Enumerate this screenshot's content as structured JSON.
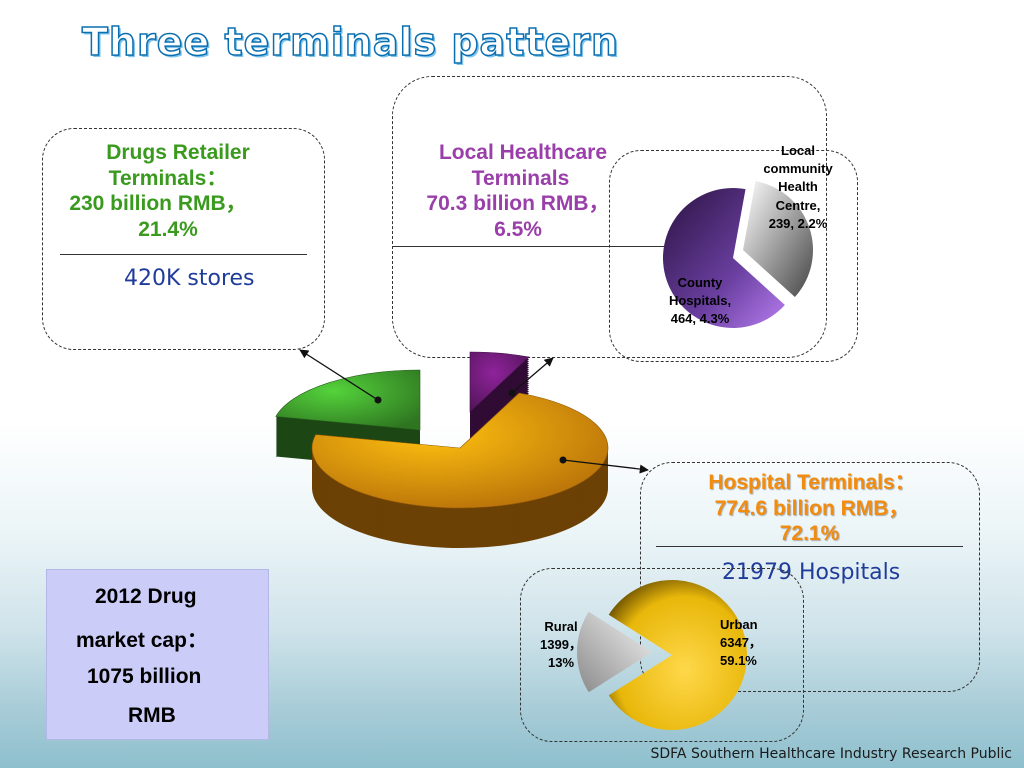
{
  "slide": {
    "title": "Three terminals pattern",
    "footer": "SDFA Southern Healthcare Industry Research Public"
  },
  "retail_box": {
    "lines": [
      "Drugs Retailer",
      "Terminals：",
      "230 billion RMB，",
      "21.4%"
    ],
    "stores": "420K stores"
  },
  "local_box": {
    "lines": [
      "Local Healthcare",
      "Terminals",
      "70.3 billion RMB，",
      "6.5%"
    ]
  },
  "hospital_box": {
    "lines": [
      "Hospital Terminals：",
      "774.6 billion RMB，",
      "72.1%"
    ],
    "count": "21979 Hospitals"
  },
  "market_cap": {
    "lines": [
      "2012 Drug",
      "market cap：",
      "1075 billion",
      "RMB"
    ]
  },
  "colors": {
    "retail": "#3e9c2c",
    "local": "#6a1a73",
    "hospital": "#f0900c",
    "county": "#b77ef0",
    "community": "#9b9b9b",
    "urban": "#e8b70a",
    "rural": "#a7a7a7",
    "retail_title": "#3a9a1e",
    "local_title": "#9a3fa9",
    "hospital_title": "#f28c0f"
  },
  "chart_data": [
    {
      "type": "pie",
      "title": "",
      "categories": [
        "Drugs Retailer Terminals",
        "Local Healthcare Terminals",
        "Hospital Terminals"
      ],
      "values": [
        230,
        70.3,
        774.6
      ],
      "percents": [
        21.4,
        6.5,
        72.1
      ],
      "unit": "billion RMB",
      "style": "3d-exploded"
    },
    {
      "type": "pie",
      "title": "",
      "categories": [
        "County Hospitals",
        "Local community Health Centre"
      ],
      "values": [
        464,
        239
      ],
      "percents": [
        4.3,
        2.2
      ],
      "labels": [
        "County\nHospitals,\n464, 4.3%",
        "Local\ncommunity\nHealth\nCentre,\n239, 2.2%"
      ]
    },
    {
      "type": "pie",
      "title": "",
      "categories": [
        "Urban",
        "Rural"
      ],
      "values": [
        6347,
        1399
      ],
      "percents": [
        59.1,
        13
      ],
      "labels": [
        "Urban\n6347，\n59.1%",
        "Rural\n1399，\n13%"
      ]
    }
  ]
}
